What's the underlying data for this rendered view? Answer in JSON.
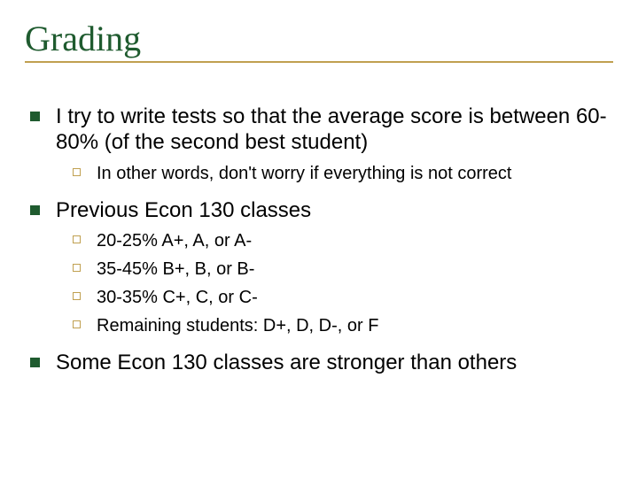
{
  "title": {
    "text": "Grading",
    "color": "#1f5b2f",
    "fontsize_pt": 40,
    "font_family": "Times New Roman"
  },
  "rule_color": "#c0a050",
  "bullet_l1_color": "#1f5b2f",
  "bullet_l2_border_color": "#c0a050",
  "body_color": "#000000",
  "body_fontsize_pt": 24,
  "sub_fontsize_pt": 20,
  "background_color": "#ffffff",
  "items": [
    {
      "text": "I try to write tests so that the average score is between 60-80% (of the second best student)",
      "sub": [
        "In other words, don't worry if everything is not correct"
      ]
    },
    {
      "text": "Previous Econ 130 classes",
      "sub": [
        "20-25% A+, A, or A-",
        "35-45% B+, B, or B-",
        "30-35% C+, C, or C-",
        "Remaining students:  D+, D, D-, or F"
      ]
    },
    {
      "text": "Some Econ 130 classes are stronger than others",
      "sub": []
    }
  ]
}
